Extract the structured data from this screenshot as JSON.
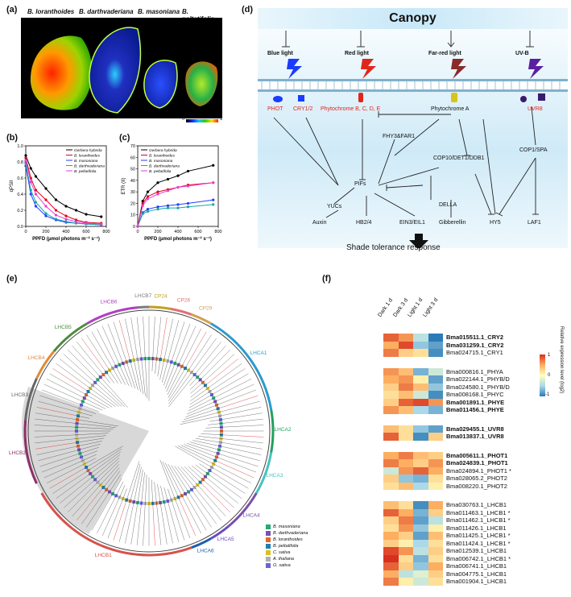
{
  "panels": {
    "a": {
      "label": "(a)",
      "species": [
        "B. loranthoides",
        "B. darthvaderiana",
        "B. masoniana",
        "B. peltatifolia"
      ],
      "scale_min": "0",
      "scale_max": "1"
    },
    "b": {
      "label": "(b)",
      "ylabel": "qPSII",
      "xlabel": "PPFD (μmol photons m⁻² s⁻¹)"
    },
    "c": {
      "label": "(c)",
      "ylabel": "ETR (II)",
      "xlabel": "PPFD (μmol photons m⁻² s⁻¹)"
    },
    "d": {
      "label": "(d)"
    },
    "e": {
      "label": "(e)"
    },
    "f": {
      "label": "(f)"
    }
  },
  "chart_data": [
    {
      "type": "line",
      "ylabel": "qPSII",
      "xlabel": "PPFD (μmol photons m⁻² s⁻¹)",
      "xlim": [
        0,
        800
      ],
      "ylim": [
        0,
        1.0
      ],
      "xticks": [
        "0",
        "200",
        "400",
        "600",
        "800"
      ],
      "yticks": [
        "0.0",
        "0.2",
        "0.4",
        "0.6",
        "0.8",
        "1.0"
      ],
      "legend": "top-right",
      "x": [
        0,
        50,
        100,
        200,
        300,
        400,
        500,
        600,
        750
      ],
      "series": [
        {
          "name": "Gerbera hybrida",
          "color": "#000000",
          "values": [
            0.88,
            0.72,
            0.62,
            0.47,
            0.33,
            0.25,
            0.2,
            0.15,
            0.12
          ]
        },
        {
          "name": "B. loranthoides",
          "color": "#e0001b",
          "values": [
            0.85,
            0.6,
            0.45,
            0.33,
            0.2,
            0.13,
            0.08,
            0.05,
            0.04
          ]
        },
        {
          "name": "B. masoniana",
          "color": "#1f3fff",
          "values": [
            0.75,
            0.4,
            0.25,
            0.13,
            0.08,
            0.05,
            0.04,
            0.03,
            0.02
          ]
        },
        {
          "name": "B. darthvaderiana",
          "color": "#16a6a6",
          "values": [
            0.78,
            0.45,
            0.3,
            0.16,
            0.09,
            0.06,
            0.04,
            0.03,
            0.02
          ]
        },
        {
          "name": "B. peltatifolia",
          "color": "#e83fd0",
          "values": [
            0.82,
            0.55,
            0.4,
            0.25,
            0.14,
            0.09,
            0.06,
            0.04,
            0.03
          ]
        }
      ]
    },
    {
      "type": "line",
      "ylabel": "ETR (II)",
      "xlabel": "PPFD (μmol photons m⁻² s⁻¹)",
      "xlim": [
        0,
        800
      ],
      "ylim": [
        0,
        70
      ],
      "xticks": [
        "0",
        "200",
        "400",
        "600",
        "800"
      ],
      "yticks": [
        "0",
        "10",
        "20",
        "30",
        "40",
        "50",
        "60",
        "70"
      ],
      "legend": "top-left",
      "x": [
        0,
        50,
        100,
        200,
        300,
        400,
        500,
        750
      ],
      "series": [
        {
          "name": "Gerbera hybrida",
          "color": "#000000",
          "values": [
            0,
            22,
            30,
            38,
            41,
            44,
            48,
            53
          ]
        },
        {
          "name": "B. loranthoides",
          "color": "#e0001b",
          "values": [
            0,
            20,
            26,
            30,
            32,
            34,
            36,
            38
          ]
        },
        {
          "name": "B. masoniana",
          "color": "#1f3fff",
          "values": [
            0,
            12,
            15,
            17,
            18,
            19,
            20,
            23
          ]
        },
        {
          "name": "B. darthvaderiana",
          "color": "#16a6a6",
          "values": [
            0,
            11,
            13,
            15,
            16,
            16,
            17,
            19
          ]
        },
        {
          "name": "B. peltatifolia",
          "color": "#e83fd0",
          "values": [
            0,
            18,
            24,
            28,
            31,
            34,
            35,
            38
          ]
        }
      ]
    }
  ],
  "diagram": {
    "title": "Canopy",
    "lights": [
      "Blue light",
      "Red light",
      "Far-red light",
      "UV-B"
    ],
    "receptors": [
      "PHOT",
      "CRY1/2",
      "Phytochrome B, C, D, E",
      "Phytochrome A",
      "UVR8"
    ],
    "nodes": [
      "FHY3&FAR1",
      "PIFs",
      "COP10/DET1/DDB1",
      "COP1/SPA",
      "YUCs",
      "DELLA",
      "Auxin",
      "HB2/4",
      "EIN3/EIL1",
      "Gibberellin",
      "HY5",
      "LAF1"
    ],
    "result": "Shade tolerance response"
  },
  "tree": {
    "clades": [
      "LHCB1",
      "LHCB2",
      "LHCB3",
      "LHCB4",
      "LHCB5",
      "LHCB6",
      "LHCB7",
      "CP24",
      "CP26",
      "CP29",
      "LHCA1",
      "LHCA2",
      "LHCA3",
      "LHCA4",
      "LHCA5",
      "LHCA6"
    ],
    "legend": [
      {
        "name": "B. masoniana",
        "color": "#2aa876"
      },
      {
        "name": "B. darthvaderiana",
        "color": "#7b4fb0"
      },
      {
        "name": "B. loranthoides",
        "color": "#e06b2b"
      },
      {
        "name": "B. peltatifolia",
        "color": "#1f7fb4"
      },
      {
        "name": "C. sativa",
        "color": "#d9c11f"
      },
      {
        "name": "A. thaliana",
        "color": "#b0b0b0"
      },
      {
        "name": "O. sativa",
        "color": "#6b62d8"
      }
    ]
  },
  "heatmap": {
    "columns": [
      "Dark 1 d",
      "Dark 3 d",
      "Light 1 d",
      "Light 3 d"
    ],
    "scale_label": "Relative expression level (log2)",
    "scale_ticks": [
      "1",
      "0",
      "-1"
    ],
    "groups": [
      {
        "rows": [
          {
            "label": "Bma015511.1_CRY2",
            "bold": true,
            "vals": [
              0.8,
              0.6,
              -0.4,
              -1
            ]
          },
          {
            "label": "Bma031259.1_CRY2",
            "bold": true,
            "vals": [
              0.5,
              0.9,
              -0.6,
              -0.8
            ]
          },
          {
            "label": "Bma024715.1_CRY1",
            "bold": false,
            "vals": [
              0.7,
              0.3,
              0.2,
              -0.9
            ]
          }
        ]
      },
      {
        "rows": [
          {
            "label": "Bma000816.1_PHYA",
            "bold": false,
            "vals": [
              0.6,
              0.4,
              -0.7,
              -0.3
            ]
          },
          {
            "label": "Bma022144.1_PHYB/D",
            "bold": false,
            "vals": [
              0.5,
              0.6,
              0.1,
              -0.8
            ]
          },
          {
            "label": "Bma024580.1_PHYB/D",
            "bold": false,
            "vals": [
              0.3,
              0.7,
              0.4,
              -0.6
            ]
          },
          {
            "label": "Bma008168.1_PHYC",
            "bold": false,
            "vals": [
              0.2,
              0.4,
              -0.3,
              -0.9
            ]
          },
          {
            "label": "Bma001891.1_PHYE",
            "bold": true,
            "vals": [
              0.3,
              0.8,
              0.9,
              0.6
            ]
          },
          {
            "label": "Bma011456.1_PHYE",
            "bold": true,
            "vals": [
              0.6,
              0.4,
              -0.5,
              -0.7
            ]
          }
        ]
      },
      {
        "rows": [
          {
            "label": "Bma029455.1_UVR8",
            "bold": true,
            "vals": [
              0.4,
              0.2,
              -0.6,
              -0.8
            ]
          },
          {
            "label": "Bma013837.1_UVR8",
            "bold": true,
            "vals": [
              0.8,
              0.2,
              -0.9,
              0.3
            ]
          }
        ]
      },
      {
        "rows": [
          {
            "label": "Bma005611.1_PHOT1",
            "bold": true,
            "vals": [
              0.5,
              0.7,
              0.4,
              0.3
            ]
          },
          {
            "label": "Bma024839.1_PHOT1",
            "bold": true,
            "vals": [
              0.7,
              0.5,
              0.3,
              0.6
            ]
          },
          {
            "label": "Bma024894.1_PHOT1 *",
            "bold": false,
            "vals": [
              -0.3,
              0.6,
              0.8,
              0.5
            ]
          },
          {
            "label": "Bma028065.2_PHOT2",
            "bold": false,
            "vals": [
              0.3,
              -0.6,
              -0.7,
              0.2
            ]
          },
          {
            "label": "Bma008220.1_PHOT2",
            "bold": false,
            "vals": [
              0.2,
              0.4,
              -0.5,
              0.1
            ]
          }
        ]
      },
      {
        "rows": [
          {
            "label": "Bma030763.1_LHCB1",
            "bold": false,
            "vals": [
              0.4,
              0.2,
              -0.9,
              0.5
            ]
          },
          {
            "label": "Bma011463.1_LHCB1 *",
            "bold": false,
            "vals": [
              0.8,
              0.5,
              -0.7,
              0.3
            ]
          },
          {
            "label": "Bma011462.1_LHCB1 *",
            "bold": false,
            "vals": [
              0.3,
              0.7,
              -0.8,
              -0.4
            ]
          },
          {
            "label": "Bma011426.1_LHCB1",
            "bold": false,
            "vals": [
              0.2,
              0.6,
              -0.6,
              0.1
            ]
          },
          {
            "label": "Bma011425.1_LHCB1 *",
            "bold": false,
            "vals": [
              0.5,
              0.3,
              -0.8,
              0.4
            ]
          },
          {
            "label": "Bma011424.1_LHCB1 *",
            "bold": false,
            "vals": [
              0.3,
              0.1,
              -0.5,
              0.2
            ]
          },
          {
            "label": "Bma012539.1_LHCB1",
            "bold": false,
            "vals": [
              0.9,
              0.6,
              -0.4,
              0.3
            ]
          },
          {
            "label": "Bma006742.1_LHCB1 *",
            "bold": false,
            "vals": [
              1,
              0.2,
              -0.7,
              0.2
            ]
          },
          {
            "label": "Bma006741.1_LHCB1",
            "bold": false,
            "vals": [
              0.8,
              0.3,
              -0.6,
              0.5
            ]
          },
          {
            "label": "Bma004775.1_LHCB1",
            "bold": false,
            "vals": [
              0.5,
              -0.4,
              -0.2,
              0.3
            ]
          },
          {
            "label": "Bma001904.1_LHCB1",
            "bold": false,
            "vals": [
              0.7,
              0.1,
              -0.3,
              0.2
            ]
          }
        ]
      }
    ]
  }
}
